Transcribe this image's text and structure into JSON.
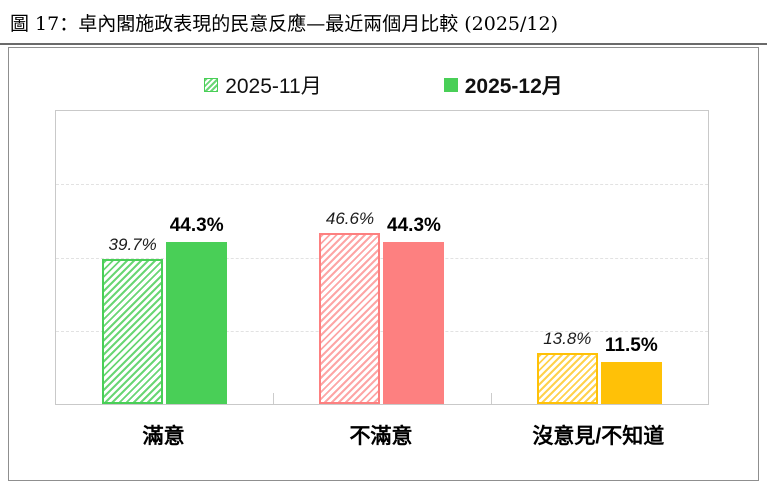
{
  "page": {
    "title": "圖 17：卓內閣施政表現的民意反應—最近兩個月比較 (2025/12)"
  },
  "legend": [
    {
      "label": "2025-11月",
      "style": "hatched",
      "color": "#49cf57",
      "stripe": "#6ad675"
    },
    {
      "label": "2025-12月",
      "style": "solid",
      "color": "#49cf57"
    }
  ],
  "chart_data": {
    "type": "bar",
    "title": "卓內閣施政表現的民意反應—最近兩個月比較 (2025/12)",
    "categories": [
      "滿意",
      "不滿意",
      "沒意見/不知道"
    ],
    "series": [
      {
        "name": "2025-11月",
        "style": "hatched",
        "label_style": "italic",
        "values": [
          39.7,
          46.6,
          13.8
        ]
      },
      {
        "name": "2025-12月",
        "style": "solid",
        "label_style": "bold",
        "values": [
          44.3,
          44.3,
          11.5
        ]
      }
    ],
    "palette": [
      {
        "category": "滿意",
        "solid": "#49cf57",
        "stripe": "#6ad675"
      },
      {
        "category": "不滿意",
        "solid": "#fd8080",
        "stripe": "#fda6a6"
      },
      {
        "category": "沒意見/不知道",
        "solid": "#ffc107",
        "stripe": "#ffd24d"
      }
    ],
    "value_suffix": "%",
    "ylim": [
      0,
      80
    ],
    "gridlines": [
      20,
      40,
      60,
      80
    ],
    "grid": "dashed",
    "legend_position": "top"
  }
}
